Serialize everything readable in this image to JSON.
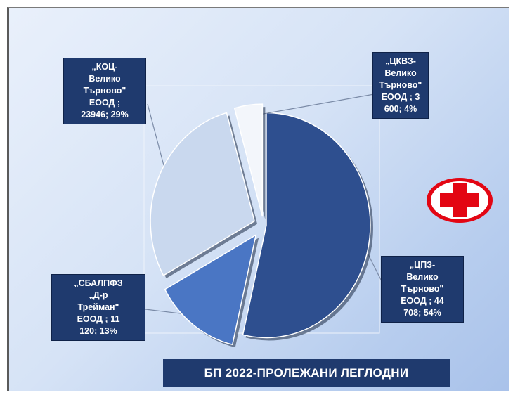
{
  "chart_data": {
    "type": "pie",
    "title": "БП 2022-ПРОЛЕЖАНИ ЛЕГЛОДНИ",
    "slices": [
      {
        "name": ".,ЦПЗ-Велико Търново\" ЕООД",
        "value": 44708,
        "percent": 54,
        "color": "#2e4f8f",
        "label_lines": [
          "„ЦПЗ-",
          "Велико",
          "Търново\"",
          "ЕООД  ; 44",
          "708; 54%"
        ]
      },
      {
        "name": "„СБАЛПФЗ „Д-р Трейман\" ЕООД",
        "value": 11120,
        "percent": 13,
        "color": "#4a76c4",
        "label_lines": [
          "„СБАЛПФЗ",
          "„Д-р",
          "Трейман\"",
          "ЕООД   ; 11",
          "120; 13%"
        ]
      },
      {
        "name": "„КОЦ-Велико Търново\" ЕООД",
        "value": 23946,
        "percent": 29,
        "color": "#c9d8ee",
        "label_lines": [
          "„КОЦ-",
          "Велико",
          "Търново\"",
          "ЕООД ;",
          "23946; 29%"
        ]
      },
      {
        "name": "„ЦКВЗ-Велико Търново\" ЕООД",
        "value": 3600,
        "percent": 4,
        "color": "#f3f6fb",
        "label_lines": [
          "„ЦКВЗ-",
          "Велико",
          "Търново\"",
          "ЕООД ; 3",
          "600; 4%"
        ]
      }
    ]
  },
  "icons": {
    "logo": "red-cross-icon"
  },
  "colors": {
    "label_bg": "#1f3a6e",
    "cross": "#e30613"
  }
}
